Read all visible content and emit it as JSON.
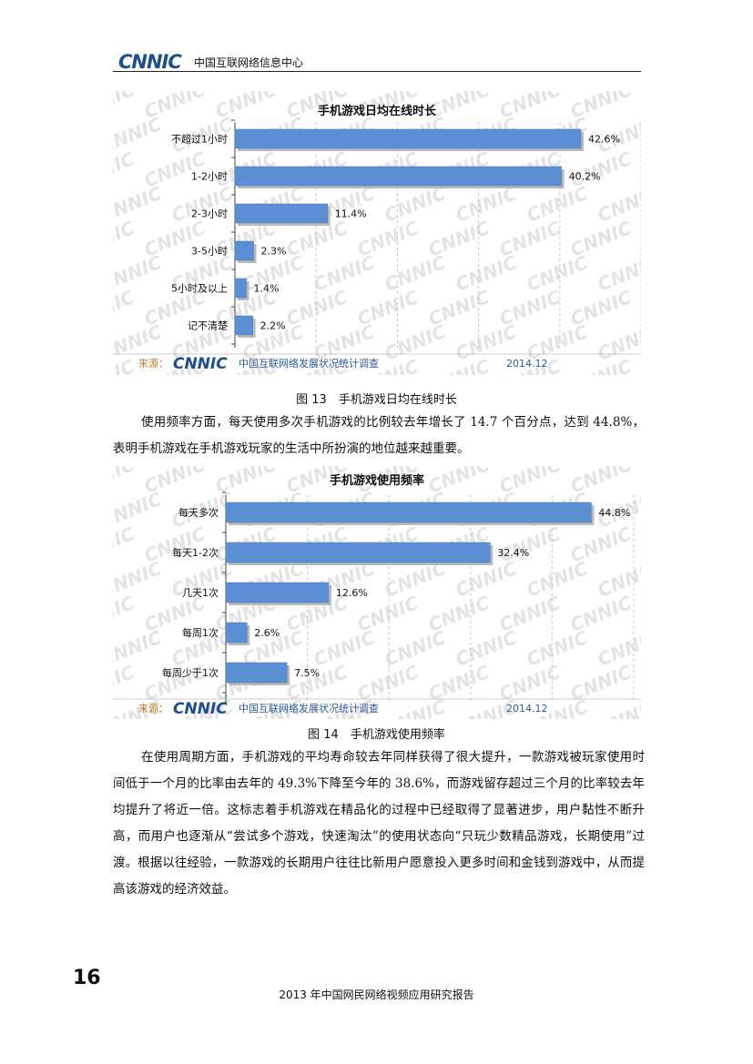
{
  "header": {
    "logo": "CNNIC",
    "org": "中国互联网络信息中心"
  },
  "figure13": {
    "caption": "图 13　手机游戏日均在线时长"
  },
  "figure14": {
    "caption": "图 14　手机游戏使用频率"
  },
  "paragraph1": "使用频率方面，每天使用多次手机游戏的比例较去年增长了 14.7 个百分点，达到 44.8%，表明手机游戏在手机游戏玩家的生活中所扮演的地位越来越重要。",
  "paragraph2": "在使用周期方面，手机游戏的平均寿命较去年同样获得了很大提升，一款游戏被玩家使用时间低于一个月的比率由去年的 49.3%下降至今年的 38.6%，而游戏留存超过三个月的比率较去年均提升了将近一倍。这标志着手机游戏在精品化的过程中已经取得了显著进步，用户黏性不断升高，而用户也逐渐从“尝试多个游戏，快速淘汰”的使用状态向“只玩少数精品游戏，长期使用”过渡。根据以往经验，一款游戏的长期用户往往比新用户愿意投入更多时间和金钱到游戏中，从而提高该游戏的经济效益。",
  "page_number": "16",
  "footer": "2013 年中国网民网络视频应用研究报告",
  "colors": {
    "bar": "#5b8fd3",
    "logo": "#1d4f8f",
    "source": "#2a5aa0",
    "watermark": "#e4e4e4"
  },
  "chart_data": [
    {
      "type": "bar",
      "orientation": "horizontal",
      "title": "手机游戏日均在线时长",
      "categories": [
        "不超过1小时",
        "1-2小时",
        "2-3小时",
        "3-5小时",
        "5小时及以上",
        "记不清楚"
      ],
      "values": [
        42.6,
        40.2,
        11.4,
        2.3,
        1.4,
        2.2
      ],
      "value_labels": [
        "42.6%",
        "40.2%",
        "11.4%",
        "2.3%",
        "1.4%",
        "2.2%"
      ],
      "xlim": [
        0,
        50
      ],
      "source_label": "来源：",
      "source_text": "中国互联网络发展状况统计调查",
      "date": "2014.12",
      "watermark": "CNNIC"
    },
    {
      "type": "bar",
      "orientation": "horizontal",
      "title": "手机游戏使用频率",
      "categories": [
        "每天多次",
        "每天1-2次",
        "几天1次",
        "每周1次",
        "每周少于1次"
      ],
      "values": [
        44.8,
        32.4,
        12.6,
        2.6,
        7.5
      ],
      "value_labels": [
        "44.8%",
        "32.4%",
        "12.6%",
        "2.6%",
        "7.5%"
      ],
      "xlim": [
        0,
        50
      ],
      "source_label": "来源：",
      "source_text": "中国互联网络发展状况统计调查",
      "date": "2014.12",
      "watermark": "CNNIC"
    }
  ]
}
